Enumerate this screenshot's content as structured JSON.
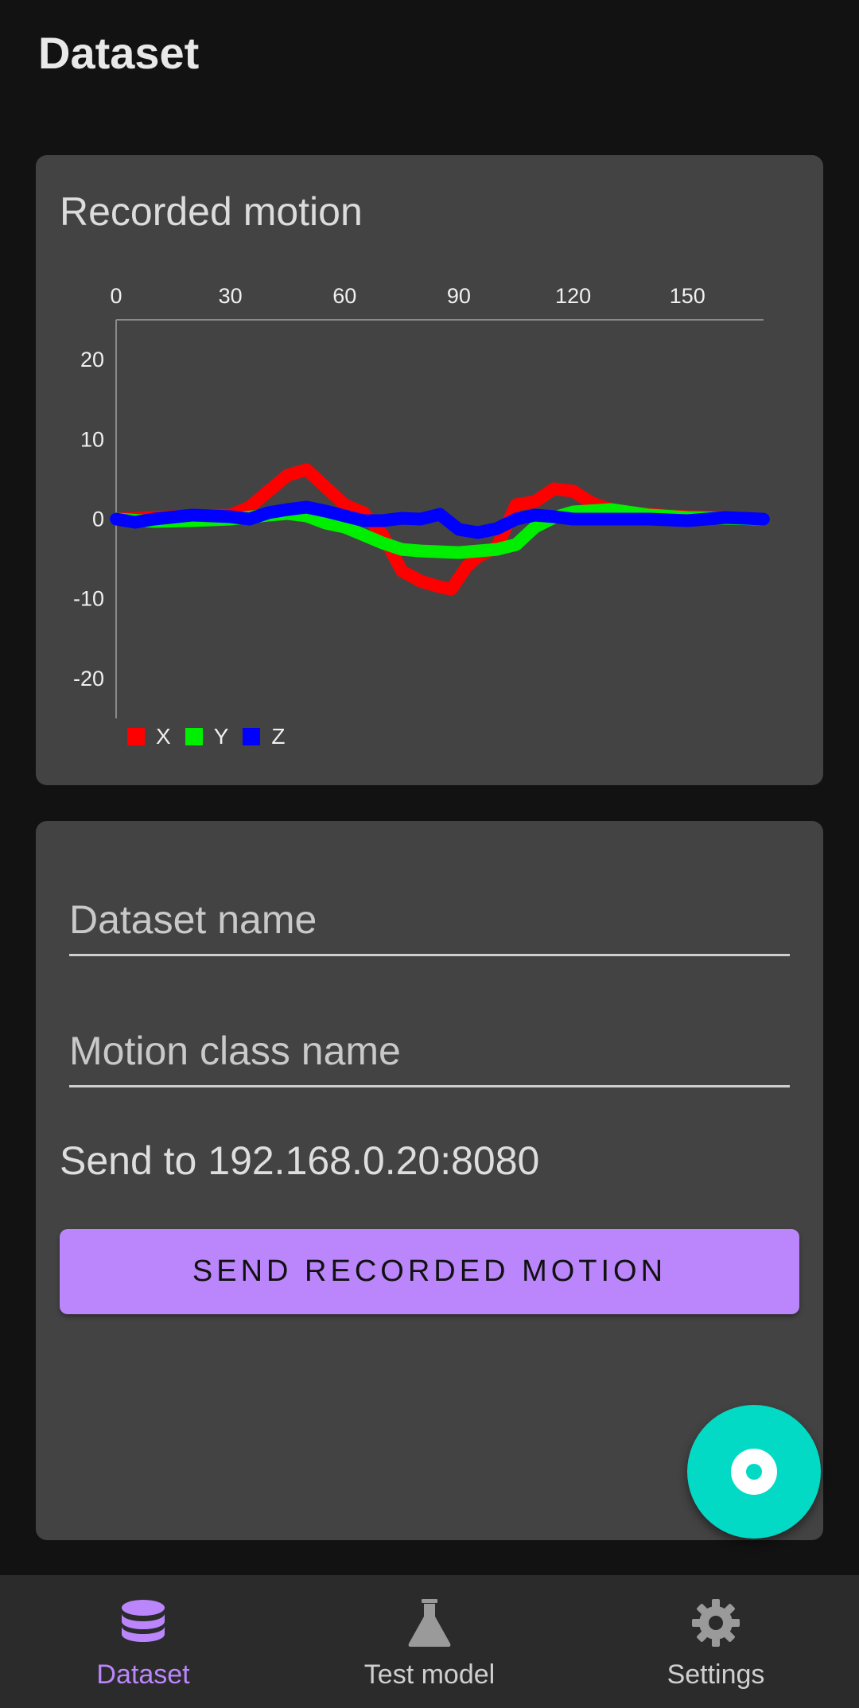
{
  "app_bar": {
    "title": "Dataset"
  },
  "chart_card": {
    "title": "Recorded motion"
  },
  "chart_data": {
    "type": "line",
    "title": "",
    "x_ticks": [
      0,
      30,
      60,
      90,
      120,
      150
    ],
    "y_ticks": [
      20,
      10,
      0,
      -10,
      -20
    ],
    "xlim": [
      0,
      170
    ],
    "ylim": [
      -25,
      25
    ],
    "legend_position": "bottom-left",
    "series": [
      {
        "name": "X",
        "color": "#ff0000",
        "x": [
          0,
          10,
          20,
          30,
          35,
          40,
          45,
          50,
          55,
          60,
          65,
          70,
          75,
          80,
          85,
          88,
          92,
          95,
          100,
          105,
          110,
          115,
          120,
          125,
          130,
          135,
          140,
          150,
          160,
          170
        ],
        "y": [
          0,
          0.2,
          0.4,
          0.5,
          1.5,
          3.5,
          5.5,
          6.2,
          4,
          1.8,
          0.8,
          -2,
          -6.5,
          -7.8,
          -8.5,
          -8.8,
          -6,
          -4.7,
          -3.5,
          1.8,
          2.2,
          3.8,
          3.5,
          2,
          1.2,
          0.8,
          0.6,
          0.3,
          0.2,
          0
        ]
      },
      {
        "name": "Y",
        "color": "#00ee00",
        "x": [
          0,
          10,
          20,
          30,
          40,
          45,
          50,
          55,
          60,
          65,
          70,
          75,
          80,
          90,
          100,
          105,
          110,
          115,
          120,
          130,
          140,
          150,
          160,
          170
        ],
        "y": [
          0,
          -0.3,
          -0.2,
          0,
          0.5,
          0.7,
          0.4,
          -0.5,
          -1,
          -2,
          -3,
          -3.8,
          -4,
          -4.2,
          -3.8,
          -3.2,
          -1,
          0.2,
          0.9,
          1.2,
          0.5,
          0.2,
          0.1,
          0
        ]
      },
      {
        "name": "Z",
        "color": "#0000ff",
        "x": [
          0,
          5,
          10,
          20,
          30,
          35,
          40,
          45,
          50,
          55,
          60,
          65,
          70,
          75,
          80,
          85,
          90,
          95,
          100,
          105,
          110,
          115,
          120,
          130,
          140,
          150,
          155,
          160,
          170
        ],
        "y": [
          0,
          -0.4,
          0,
          0.5,
          0.3,
          0,
          0.8,
          1.2,
          1.5,
          1,
          0.4,
          -0.2,
          -0.2,
          0.1,
          0,
          0.6,
          -1.3,
          -1.7,
          -1.2,
          0,
          0.5,
          0.3,
          0,
          0,
          0,
          -0.2,
          0,
          0.2,
          0
        ]
      }
    ]
  },
  "form": {
    "dataset_name_placeholder": "Dataset name",
    "motion_class_placeholder": "Motion class name",
    "send_to_text": "Send to 192.168.0.20:8080",
    "send_button_label": "SEND RECORDED MOTION"
  },
  "fab": {
    "icon": "record-icon",
    "color": "#03dac5"
  },
  "bottom_nav": {
    "items": [
      {
        "label": "Dataset",
        "icon": "database-icon",
        "active": true
      },
      {
        "label": "Test model",
        "icon": "flask-icon",
        "active": false
      },
      {
        "label": "Settings",
        "icon": "gear-icon",
        "active": false
      }
    ]
  },
  "colors": {
    "accent": "#bb86fc",
    "background": "#121212",
    "card": "#434343"
  }
}
